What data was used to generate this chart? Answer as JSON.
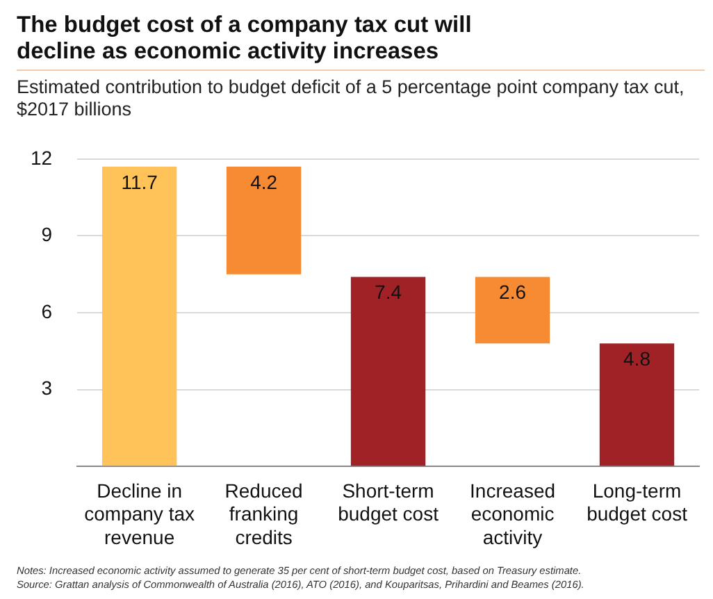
{
  "chart_data": {
    "type": "bar",
    "title": "The budget cost of a company tax cut will decline as economic activity increases",
    "subtitle": "Estimated contribution to budget deficit of a 5 percentage point company tax cut, $2017 billions",
    "categories": [
      "Decline in company tax revenue",
      "Reduced franking credits",
      "Short-term budget cost",
      "Increased economic activity",
      "Long-term budget cost"
    ],
    "values": [
      11.7,
      4.2,
      7.4,
      2.6,
      4.8
    ],
    "base": [
      0,
      7.5,
      0,
      4.8,
      0
    ],
    "colors": [
      "#ffc35a",
      "#f68b33",
      "#a02226",
      "#f68b33",
      "#a02226"
    ],
    "ylim": [
      0,
      12
    ],
    "yticks": [
      {
        "value": 0,
        "label": null
      },
      3,
      6,
      9,
      12
    ],
    "grid": "y",
    "data_labels": true,
    "legend": false,
    "annotations": [
      "Notes: Increased economic activity assumed to generate 35 per cent of short-term budget cost, based on Treasury estimate.",
      "Source: Grattan analysis of Commonwealth of Australia (2016), ATO (2016), and Kouparitsas, Prihardini and Beames (2016)."
    ]
  }
}
